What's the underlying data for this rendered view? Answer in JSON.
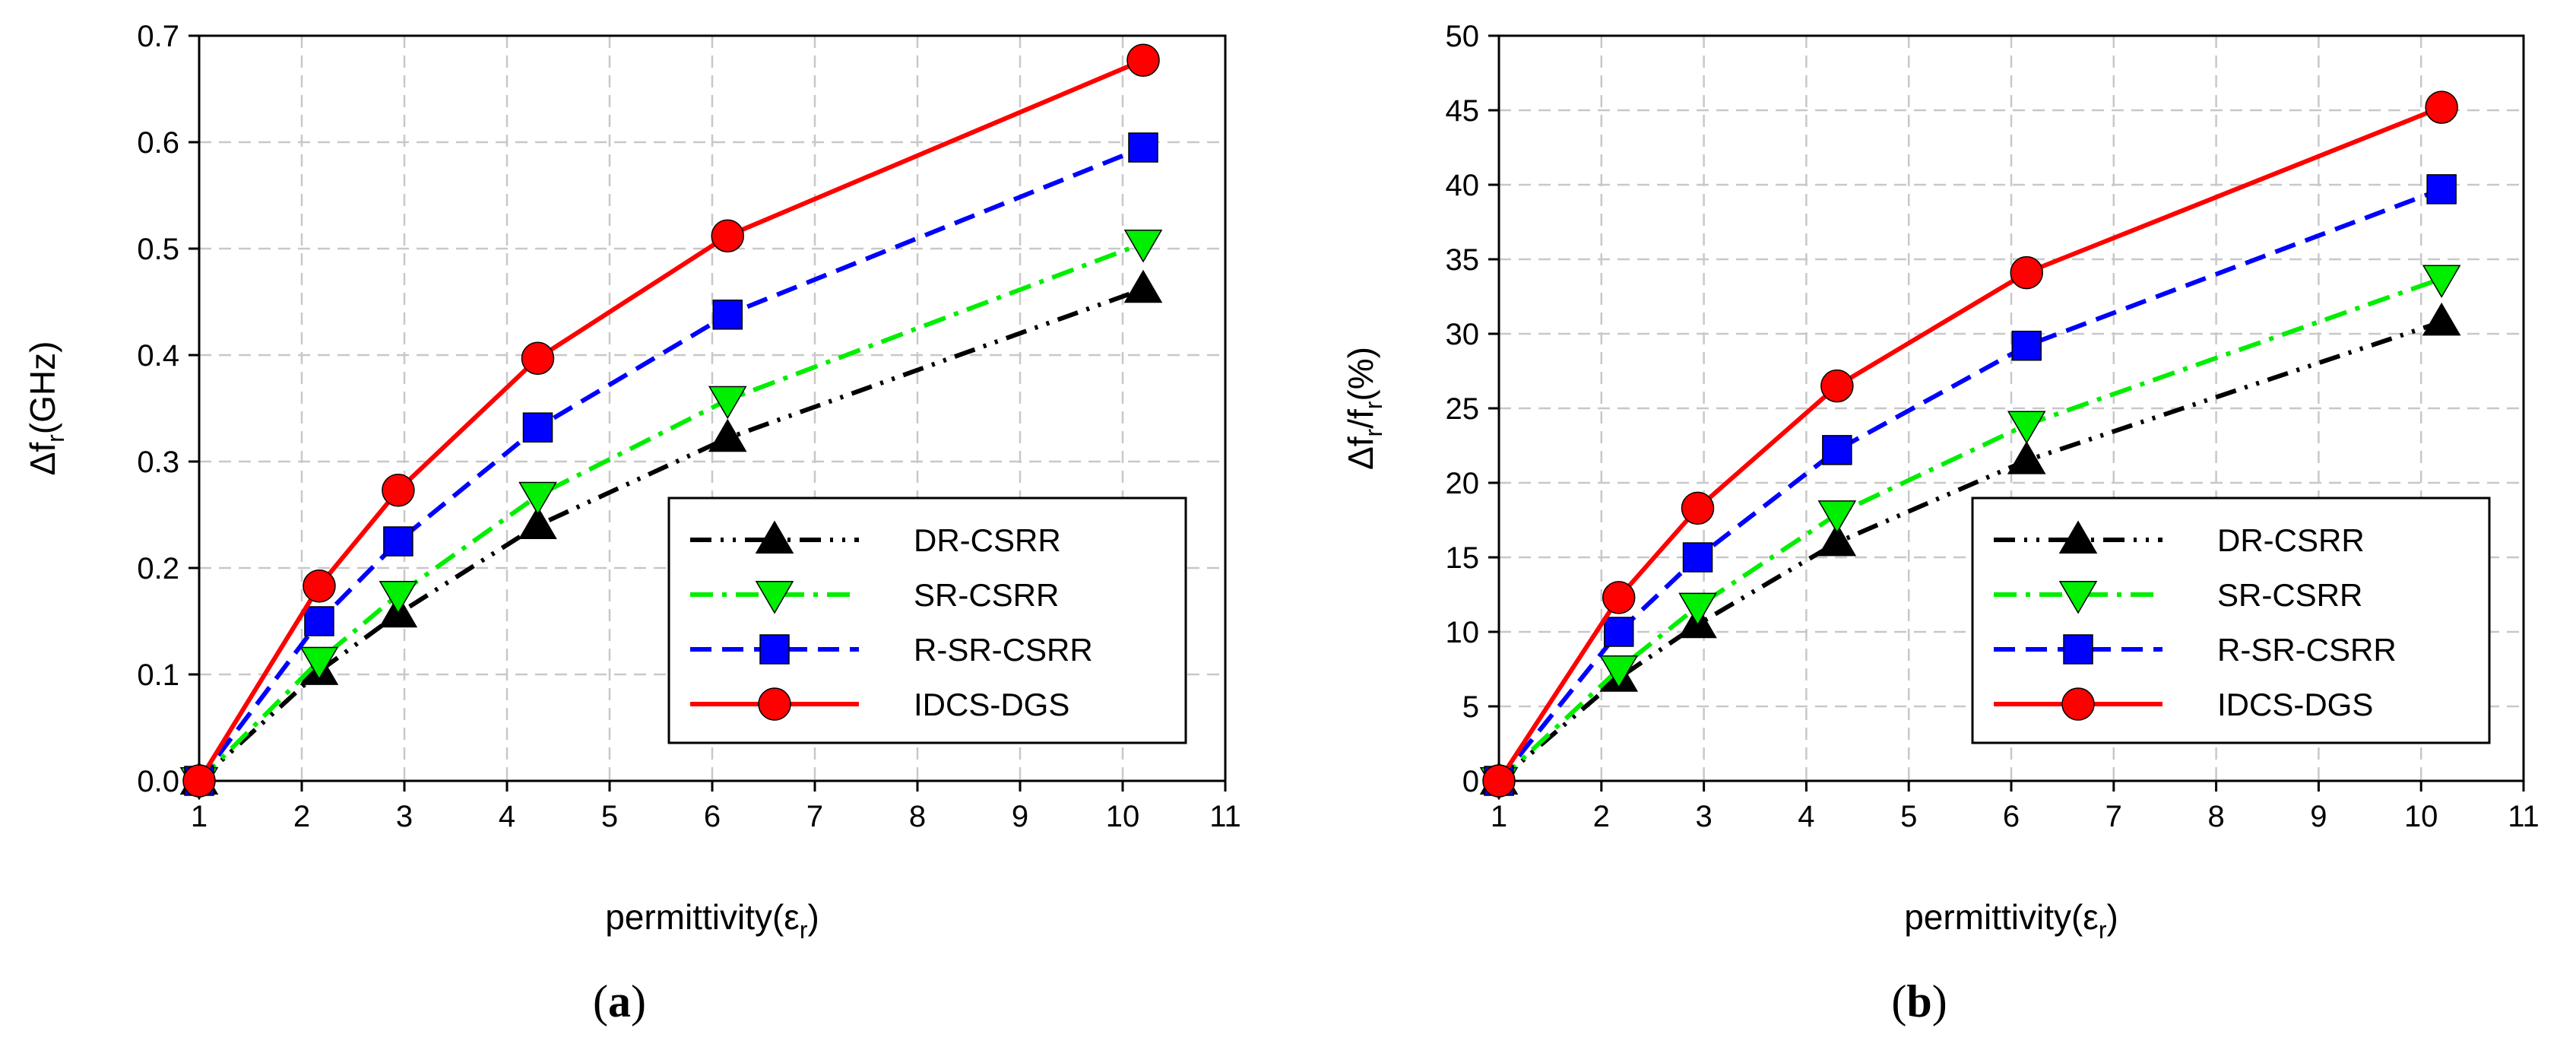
{
  "chart_data": [
    {
      "type": "line",
      "caption_letter": "a",
      "title": "",
      "xlabel_main": "permittivity(ε",
      "xlabel_sub": "r",
      "xlabel_close": ")",
      "ylabel_main": "Δf",
      "ylabel_sub": "r",
      "ylabel_tail": "(GHz)",
      "xlim": [
        1,
        11
      ],
      "ylim": [
        0,
        0.7
      ],
      "xticks": [
        "1",
        "2",
        "3",
        "4",
        "5",
        "6",
        "7",
        "8",
        "9",
        "10",
        "11"
      ],
      "yticks": [
        "0.0",
        "0.1",
        "0.2",
        "0.3",
        "0.4",
        "0.5",
        "0.6",
        "0.7"
      ],
      "x": [
        1,
        2.17,
        2.94,
        4.3,
        6.15,
        10.2
      ],
      "series": [
        {
          "name": "DR-CSRR",
          "values": [
            0,
            0.103,
            0.157,
            0.24,
            0.322,
            0.462
          ]
        },
        {
          "name": "SR-CSRR",
          "values": [
            0,
            0.113,
            0.175,
            0.268,
            0.358,
            0.505
          ]
        },
        {
          "name": "R-SR-CSRR",
          "values": [
            0,
            0.15,
            0.225,
            0.332,
            0.438,
            0.595
          ]
        },
        {
          "name": "IDCS-DGS",
          "values": [
            0,
            0.183,
            0.273,
            0.397,
            0.512,
            0.677
          ]
        }
      ],
      "grid": true,
      "legend_position": "bottom-right"
    },
    {
      "type": "line",
      "caption_letter": "b",
      "title": "",
      "xlabel_main": "permittivity(ε",
      "xlabel_sub": "r",
      "xlabel_close": ")",
      "ylabel_main": "Δf",
      "ylabel_sub": "r",
      "ylabel_tail": "/f",
      "ylabel_sub2": "r",
      "ylabel_tail2": "(%)",
      "xlim": [
        1,
        11
      ],
      "ylim": [
        0,
        50
      ],
      "xticks": [
        "1",
        "2",
        "3",
        "4",
        "5",
        "6",
        "7",
        "8",
        "9",
        "10",
        "11"
      ],
      "yticks": [
        "0",
        "5",
        "10",
        "15",
        "20",
        "25",
        "30",
        "35",
        "40",
        "45",
        "50"
      ],
      "x": [
        1,
        2.17,
        2.94,
        4.3,
        6.15,
        10.2
      ],
      "series": [
        {
          "name": "DR-CSRR",
          "values": [
            0,
            6.9,
            10.5,
            16.0,
            21.5,
            30.8
          ]
        },
        {
          "name": "SR-CSRR",
          "values": [
            0,
            7.5,
            11.7,
            17.9,
            23.9,
            33.7
          ]
        },
        {
          "name": "R-SR-CSRR",
          "values": [
            0,
            10.0,
            15.0,
            22.2,
            29.2,
            39.7
          ]
        },
        {
          "name": "IDCS-DGS",
          "values": [
            0,
            12.3,
            18.3,
            26.5,
            34.1,
            45.2
          ]
        }
      ],
      "grid": true,
      "legend_position": "bottom-right"
    }
  ],
  "series_style": {
    "DR-CSRR": {
      "color": "#000000",
      "marker": "triangle-up",
      "dash": "dash-dot-dot"
    },
    "SR-CSRR": {
      "color": "#00ee00",
      "marker": "triangle-down",
      "dash": "dash-dot"
    },
    "R-SR-CSRR": {
      "color": "#0000ff",
      "marker": "square",
      "dash": "dashed"
    },
    "IDCS-DGS": {
      "color": "#ff0000",
      "marker": "circle",
      "dash": "solid"
    }
  }
}
